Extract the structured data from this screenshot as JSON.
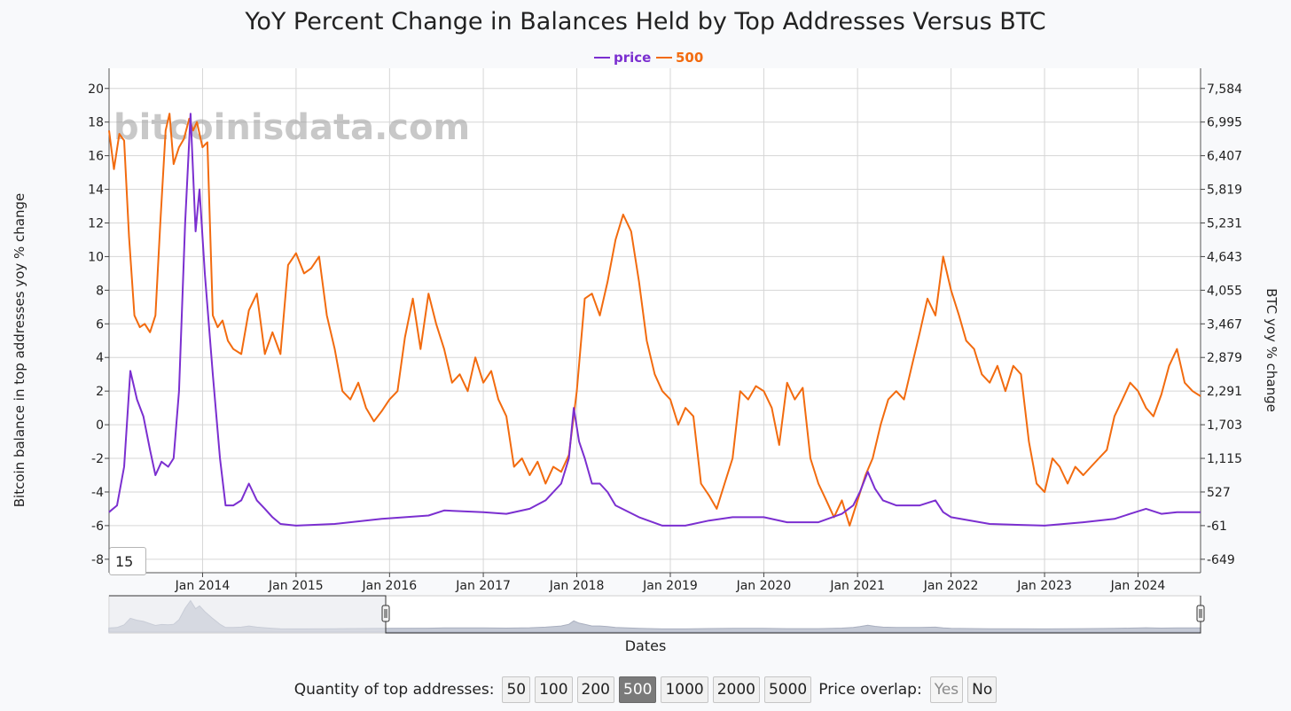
{
  "controls": {
    "quantity_label": "Quantity of top addresses:",
    "quantity_options": [
      "50",
      "100",
      "200",
      "500",
      "1000",
      "2000",
      "5000"
    ],
    "quantity_selected": "500",
    "overlap_label": "Price overlap:",
    "overlap_options": [
      "Yes",
      "No"
    ],
    "roll_value": "15"
  },
  "colors": {
    "price": "#7b2fd0",
    "series_500": "#f26b0f",
    "grid": "#d6d6d6",
    "navigator_fill": "#c5cad6"
  },
  "chart_data": {
    "type": "line",
    "title": "YoY Percent Change in Balances Held by Top Addresses Versus BTC",
    "watermark": "bitcoinisdata.com",
    "legend_position": "top-center",
    "grid": true,
    "xlabel": "Dates",
    "ylabel_left": "Bitcoin balance in top addresses yoy % change",
    "ylabel_right": "BTC yoy % change",
    "xlim": [
      "2013-01-01",
      "2024-09-01"
    ],
    "x_ticks": [
      "Jan 2014",
      "Jan 2015",
      "Jan 2016",
      "Jan 2017",
      "Jan 2018",
      "Jan 2019",
      "Jan 2020",
      "Jan 2021",
      "Jan 2022",
      "Jan 2023",
      "Jan 2024"
    ],
    "y_left": {
      "ticks": [
        20,
        18,
        16,
        14,
        12,
        10,
        8,
        6,
        4,
        2,
        0,
        -2,
        -4,
        -6,
        -8
      ],
      "range": [
        -8.8,
        21.2
      ]
    },
    "y_right": {
      "ticks": [
        "7,584",
        "6,995",
        "6,407",
        "5,819",
        "5,231",
        "4,643",
        "4,055",
        "3,467",
        "2,879",
        "2,291",
        "1,703",
        "1,115",
        "527",
        "-61",
        "-649"
      ],
      "range": [
        -649,
        7584
      ]
    },
    "series": [
      {
        "name": "500",
        "axis": "left",
        "color": "#f26b0f",
        "points": [
          [
            "2013-01-01",
            17.5
          ],
          [
            "2013-01-20",
            15.2
          ],
          [
            "2013-02-10",
            17.3
          ],
          [
            "2013-03-01",
            16.9
          ],
          [
            "2013-03-20",
            11.2
          ],
          [
            "2013-04-10",
            6.5
          ],
          [
            "2013-05-01",
            5.8
          ],
          [
            "2013-05-20",
            6.0
          ],
          [
            "2013-06-10",
            5.5
          ],
          [
            "2013-07-01",
            6.5
          ],
          [
            "2013-07-20",
            12.0
          ],
          [
            "2013-08-10",
            17.5
          ],
          [
            "2013-08-25",
            18.5
          ],
          [
            "2013-09-10",
            15.5
          ],
          [
            "2013-10-01",
            16.5
          ],
          [
            "2013-10-20",
            17.0
          ],
          [
            "2013-11-10",
            18.2
          ],
          [
            "2013-11-25",
            17.5
          ],
          [
            "2013-12-10",
            18.0
          ],
          [
            "2014-01-01",
            16.5
          ],
          [
            "2014-01-20",
            16.8
          ],
          [
            "2014-02-10",
            6.5
          ],
          [
            "2014-03-01",
            5.8
          ],
          [
            "2014-03-20",
            6.2
          ],
          [
            "2014-04-10",
            5.0
          ],
          [
            "2014-05-01",
            4.5
          ],
          [
            "2014-06-01",
            4.2
          ],
          [
            "2014-07-01",
            6.8
          ],
          [
            "2014-08-01",
            7.8
          ],
          [
            "2014-09-01",
            4.2
          ],
          [
            "2014-10-01",
            5.5
          ],
          [
            "2014-11-01",
            4.2
          ],
          [
            "2014-12-01",
            9.5
          ],
          [
            "2015-01-01",
            10.2
          ],
          [
            "2015-02-01",
            9.0
          ],
          [
            "2015-03-01",
            9.3
          ],
          [
            "2015-04-01",
            10.0
          ],
          [
            "2015-05-01",
            6.5
          ],
          [
            "2015-06-01",
            4.5
          ],
          [
            "2015-07-01",
            2.0
          ],
          [
            "2015-08-01",
            1.5
          ],
          [
            "2015-09-01",
            2.5
          ],
          [
            "2015-10-01",
            1.0
          ],
          [
            "2015-11-01",
            0.2
          ],
          [
            "2015-12-01",
            0.8
          ],
          [
            "2016-01-01",
            1.5
          ],
          [
            "2016-02-01",
            2.0
          ],
          [
            "2016-03-01",
            5.2
          ],
          [
            "2016-04-01",
            7.5
          ],
          [
            "2016-05-01",
            4.5
          ],
          [
            "2016-06-01",
            7.8
          ],
          [
            "2016-07-01",
            6.0
          ],
          [
            "2016-08-01",
            4.5
          ],
          [
            "2016-09-01",
            2.5
          ],
          [
            "2016-10-01",
            3.0
          ],
          [
            "2016-11-01",
            2.0
          ],
          [
            "2016-12-01",
            4.0
          ],
          [
            "2017-01-01",
            2.5
          ],
          [
            "2017-02-01",
            3.2
          ],
          [
            "2017-03-01",
            1.5
          ],
          [
            "2017-04-01",
            0.5
          ],
          [
            "2017-05-01",
            -2.5
          ],
          [
            "2017-06-01",
            -2.0
          ],
          [
            "2017-07-01",
            -3.0
          ],
          [
            "2017-08-01",
            -2.2
          ],
          [
            "2017-09-01",
            -3.5
          ],
          [
            "2017-10-01",
            -2.5
          ],
          [
            "2017-11-01",
            -2.8
          ],
          [
            "2017-12-01",
            -1.8
          ],
          [
            "2018-01-01",
            2.0
          ],
          [
            "2018-02-01",
            7.5
          ],
          [
            "2018-03-01",
            7.8
          ],
          [
            "2018-04-01",
            6.5
          ],
          [
            "2018-05-01",
            8.5
          ],
          [
            "2018-06-01",
            11.0
          ],
          [
            "2018-07-01",
            12.5
          ],
          [
            "2018-08-01",
            11.5
          ],
          [
            "2018-09-01",
            8.5
          ],
          [
            "2018-10-01",
            5.0
          ],
          [
            "2018-11-01",
            3.0
          ],
          [
            "2018-12-01",
            2.0
          ],
          [
            "2019-01-01",
            1.5
          ],
          [
            "2019-02-01",
            0.0
          ],
          [
            "2019-03-01",
            1.0
          ],
          [
            "2019-04-01",
            0.5
          ],
          [
            "2019-05-01",
            -3.5
          ],
          [
            "2019-06-01",
            -4.2
          ],
          [
            "2019-07-01",
            -5.0
          ],
          [
            "2019-08-01",
            -3.5
          ],
          [
            "2019-09-01",
            -2.0
          ],
          [
            "2019-10-01",
            2.0
          ],
          [
            "2019-11-01",
            1.5
          ],
          [
            "2019-12-01",
            2.3
          ],
          [
            "2020-01-01",
            2.0
          ],
          [
            "2020-02-01",
            1.0
          ],
          [
            "2020-03-01",
            -1.2
          ],
          [
            "2020-04-01",
            2.5
          ],
          [
            "2020-05-01",
            1.5
          ],
          [
            "2020-06-01",
            2.2
          ],
          [
            "2020-07-01",
            -2.0
          ],
          [
            "2020-08-01",
            -3.5
          ],
          [
            "2020-09-01",
            -4.5
          ],
          [
            "2020-10-01",
            -5.5
          ],
          [
            "2020-11-01",
            -4.5
          ],
          [
            "2020-12-01",
            -6.0
          ],
          [
            "2021-01-01",
            -4.5
          ],
          [
            "2021-02-01",
            -3.0
          ],
          [
            "2021-03-01",
            -2.0
          ],
          [
            "2021-04-01",
            0.0
          ],
          [
            "2021-05-01",
            1.5
          ],
          [
            "2021-06-01",
            2.0
          ],
          [
            "2021-07-01",
            1.5
          ],
          [
            "2021-08-01",
            3.5
          ],
          [
            "2021-09-01",
            5.5
          ],
          [
            "2021-10-01",
            7.5
          ],
          [
            "2021-11-01",
            6.5
          ],
          [
            "2021-12-01",
            10.0
          ],
          [
            "2022-01-01",
            8.0
          ],
          [
            "2022-02-01",
            6.5
          ],
          [
            "2022-03-01",
            5.0
          ],
          [
            "2022-04-01",
            4.5
          ],
          [
            "2022-05-01",
            3.0
          ],
          [
            "2022-06-01",
            2.5
          ],
          [
            "2022-07-01",
            3.5
          ],
          [
            "2022-08-01",
            2.0
          ],
          [
            "2022-09-01",
            3.5
          ],
          [
            "2022-10-01",
            3.0
          ],
          [
            "2022-11-01",
            -1.0
          ],
          [
            "2022-12-01",
            -3.5
          ],
          [
            "2023-01-01",
            -4.0
          ],
          [
            "2023-02-01",
            -2.0
          ],
          [
            "2023-03-01",
            -2.5
          ],
          [
            "2023-04-01",
            -3.5
          ],
          [
            "2023-05-01",
            -2.5
          ],
          [
            "2023-06-01",
            -3.0
          ],
          [
            "2023-07-01",
            -2.5
          ],
          [
            "2023-08-01",
            -2.0
          ],
          [
            "2023-09-01",
            -1.5
          ],
          [
            "2023-10-01",
            0.5
          ],
          [
            "2023-11-01",
            1.5
          ],
          [
            "2023-12-01",
            2.5
          ],
          [
            "2024-01-01",
            2.0
          ],
          [
            "2024-02-01",
            1.0
          ],
          [
            "2024-03-01",
            0.5
          ],
          [
            "2024-04-01",
            1.8
          ],
          [
            "2024-05-01",
            3.5
          ],
          [
            "2024-06-01",
            4.5
          ],
          [
            "2024-07-01",
            2.5
          ],
          [
            "2024-08-01",
            2.0
          ],
          [
            "2024-09-01",
            1.7
          ]
        ]
      },
      {
        "name": "price",
        "axis": "left",
        "color": "#7b2fd0",
        "points": [
          [
            "2013-01-01",
            -5.2
          ],
          [
            "2013-02-01",
            -4.8
          ],
          [
            "2013-03-01",
            -2.5
          ],
          [
            "2013-03-25",
            3.2
          ],
          [
            "2013-04-20",
            1.5
          ],
          [
            "2013-05-15",
            0.5
          ],
          [
            "2013-06-10",
            -1.5
          ],
          [
            "2013-07-01",
            -3.0
          ],
          [
            "2013-07-25",
            -2.2
          ],
          [
            "2013-08-20",
            -2.5
          ],
          [
            "2013-09-10",
            -2.0
          ],
          [
            "2013-10-01",
            2.0
          ],
          [
            "2013-10-25",
            12.0
          ],
          [
            "2013-11-15",
            18.5
          ],
          [
            "2013-12-05",
            11.5
          ],
          [
            "2013-12-20",
            14.0
          ],
          [
            "2014-01-10",
            9.0
          ],
          [
            "2014-02-10",
            3.0
          ],
          [
            "2014-03-10",
            -2.0
          ],
          [
            "2014-04-01",
            -4.8
          ],
          [
            "2014-05-01",
            -4.8
          ],
          [
            "2014-06-01",
            -4.5
          ],
          [
            "2014-07-01",
            -3.5
          ],
          [
            "2014-08-01",
            -4.5
          ],
          [
            "2014-09-01",
            -5.0
          ],
          [
            "2014-10-01",
            -5.5
          ],
          [
            "2014-11-01",
            -5.9
          ],
          [
            "2015-01-01",
            -6.0
          ],
          [
            "2015-06-01",
            -5.9
          ],
          [
            "2015-12-01",
            -5.6
          ],
          [
            "2016-06-01",
            -5.4
          ],
          [
            "2016-08-01",
            -5.1
          ],
          [
            "2017-01-01",
            -5.2
          ],
          [
            "2017-04-01",
            -5.3
          ],
          [
            "2017-07-01",
            -5.0
          ],
          [
            "2017-09-01",
            -4.5
          ],
          [
            "2017-11-01",
            -3.5
          ],
          [
            "2017-12-01",
            -2.0
          ],
          [
            "2017-12-20",
            1.0
          ],
          [
            "2018-01-10",
            -1.0
          ],
          [
            "2018-02-01",
            -2.0
          ],
          [
            "2018-03-01",
            -3.5
          ],
          [
            "2018-04-01",
            -3.5
          ],
          [
            "2018-05-01",
            -4.0
          ],
          [
            "2018-06-01",
            -4.8
          ],
          [
            "2018-09-01",
            -5.5
          ],
          [
            "2018-12-01",
            -6.0
          ],
          [
            "2019-03-01",
            -6.0
          ],
          [
            "2019-06-01",
            -5.7
          ],
          [
            "2019-09-01",
            -5.5
          ],
          [
            "2020-01-01",
            -5.5
          ],
          [
            "2020-04-01",
            -5.8
          ],
          [
            "2020-08-01",
            -5.8
          ],
          [
            "2020-11-01",
            -5.3
          ],
          [
            "2020-12-15",
            -4.8
          ],
          [
            "2021-01-10",
            -4.0
          ],
          [
            "2021-02-10",
            -2.8
          ],
          [
            "2021-03-10",
            -3.8
          ],
          [
            "2021-04-10",
            -4.5
          ],
          [
            "2021-06-01",
            -4.8
          ],
          [
            "2021-09-01",
            -4.8
          ],
          [
            "2021-11-01",
            -4.5
          ],
          [
            "2021-12-01",
            -5.2
          ],
          [
            "2022-01-01",
            -5.5
          ],
          [
            "2022-06-01",
            -5.9
          ],
          [
            "2023-01-01",
            -6.0
          ],
          [
            "2023-06-01",
            -5.8
          ],
          [
            "2023-10-01",
            -5.6
          ],
          [
            "2023-12-01",
            -5.3
          ],
          [
            "2024-02-01",
            -5.0
          ],
          [
            "2024-04-01",
            -5.3
          ],
          [
            "2024-06-01",
            -5.2
          ],
          [
            "2024-09-01",
            -5.2
          ]
        ]
      }
    ]
  }
}
